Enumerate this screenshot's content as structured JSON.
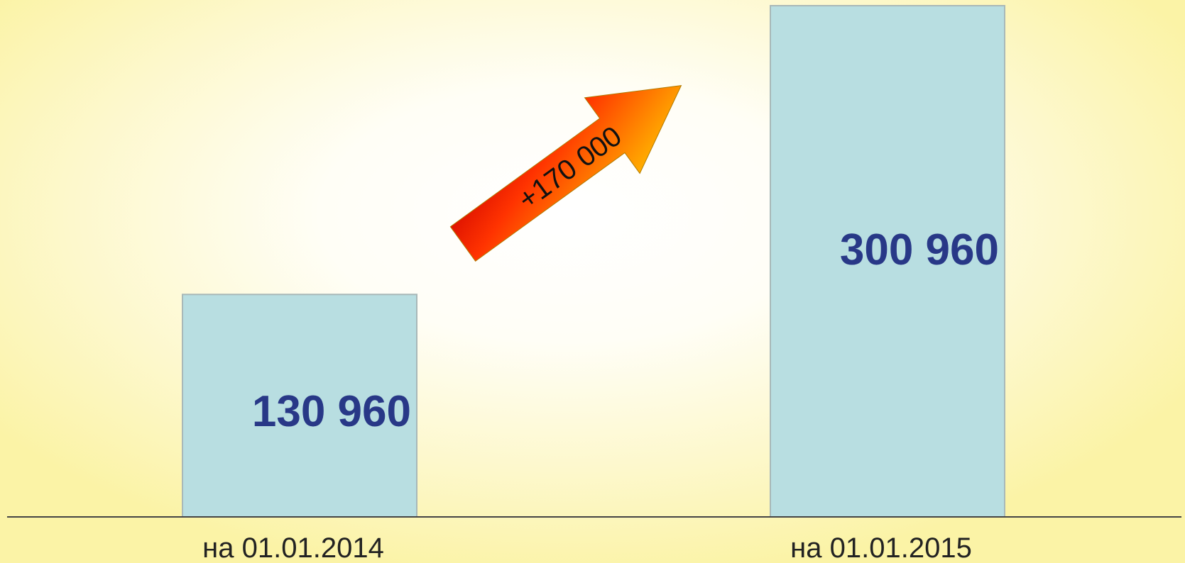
{
  "chart_data": {
    "type": "bar",
    "categories": [
      "на 01.01.2014",
      "на 01.01.2015"
    ],
    "values": [
      130960,
      300960
    ],
    "value_labels": [
      "130 960",
      "300 960"
    ],
    "ylim": [
      0,
      300960
    ],
    "grid": false,
    "annotation": {
      "text": "+170 000",
      "shape": "arrow-up-right",
      "colors": [
        "#ff0000",
        "#ffd400"
      ]
    },
    "colors": {
      "bar_fill": "#b8dee1",
      "bar_stroke": "#a8b8b8",
      "value_label": "#283887",
      "axis": "#444444",
      "category_label": "#222222"
    }
  }
}
